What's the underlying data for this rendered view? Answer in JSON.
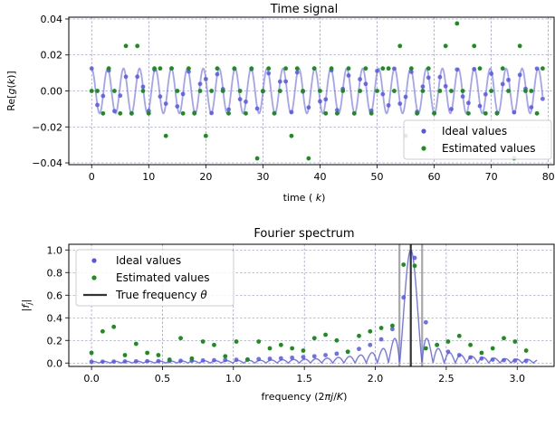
{
  "chart_data": [
    {
      "type": "scatter",
      "title": "Time signal",
      "xlabel": "time (k)",
      "ylabel": "Re[g(k)]",
      "xlim": [
        -4,
        81
      ],
      "ylim": [
        -0.041,
        0.041
      ],
      "xticks": [
        0,
        10,
        20,
        30,
        40,
        50,
        60,
        70,
        80
      ],
      "xtick_labels": [
        "0",
        "10",
        "20",
        "30",
        "40",
        "50",
        "60",
        "70",
        "80"
      ],
      "yticks": [
        -0.04,
        -0.02,
        0.0,
        0.02,
        0.04
      ],
      "ytick_labels": [
        "−0.04",
        "−0.02",
        "0.00",
        "0.02",
        "0.04"
      ],
      "grid": true,
      "legend_position": "bottom-right",
      "curve": {
        "amplitude": 0.0125,
        "omega": 2.25,
        "k_max": 79
      },
      "series": [
        {
          "name": "Ideal values",
          "color": "#5555ee",
          "x": [
            0,
            1,
            2,
            3,
            4,
            5,
            6,
            7,
            8,
            9,
            10,
            11,
            12,
            13,
            14,
            15,
            16,
            17,
            18,
            19,
            20,
            21,
            22,
            23,
            24,
            25,
            26,
            27,
            28,
            29,
            30,
            31,
            32,
            33,
            34,
            35,
            36,
            37,
            38,
            39,
            40,
            41,
            42,
            43,
            44,
            45,
            46,
            47,
            48,
            49,
            50,
            51,
            52,
            53,
            54,
            55,
            56,
            57,
            58,
            59,
            60,
            61,
            62,
            63,
            64,
            65,
            66,
            67,
            68,
            69,
            70,
            71,
            72,
            73,
            74,
            75,
            76,
            77,
            78,
            79
          ],
          "y": [
            0.0125,
            -0.0078,
            -0.0028,
            0.0113,
            -0.0112,
            -0.0026,
            0.0079,
            -0.0125,
            0.0079,
            0.0023,
            -0.0111,
            0.0118,
            -0.0031,
            -0.0071,
            0.0125,
            -0.0086,
            -0.0017,
            0.0107,
            -0.0121,
            0.0039,
            0.0066,
            -0.0123,
            0.0093,
            0.001,
            -0.0103,
            0.0123,
            -0.0046,
            -0.006,
            0.0121,
            -0.0098,
            -0.0003,
            0.0098,
            -0.0124,
            0.0052,
            0.0053,
            -0.0118,
            0.0103,
            -0.0004,
            -0.0092,
            0.0125,
            -0.0058,
            -0.0047,
            0.0115,
            -0.0107,
            0.0011,
            0.0086,
            -0.0125,
            0.0065,
            0.0039,
            -0.011,
            0.0111,
            -0.0018,
            -0.008,
            0.0124,
            -0.0071,
            -0.0033,
            0.0106,
            -0.0116,
            0.0024,
            0.0074,
            -0.0123,
            0.0077,
            0.0026,
            -0.0101,
            0.0119,
            -0.0031,
            -0.0067,
            0.0121,
            -0.0084,
            -0.0019,
            0.0096,
            -0.0122,
            0.0038,
            0.0061,
            -0.0119,
            0.0089,
            0.0012,
            -0.0091,
            0.0124,
            -0.0044
          ]
        },
        {
          "name": "Estimated values",
          "color": "#1a8f1a",
          "x": [
            0,
            1,
            2,
            3,
            4,
            5,
            6,
            7,
            8,
            9,
            10,
            11,
            12,
            13,
            14,
            15,
            16,
            17,
            18,
            19,
            20,
            21,
            22,
            23,
            24,
            25,
            26,
            27,
            28,
            29,
            30,
            31,
            32,
            33,
            34,
            35,
            36,
            37,
            38,
            39,
            40,
            41,
            42,
            43,
            44,
            45,
            46,
            47,
            48,
            49,
            50,
            51,
            52,
            53,
            54,
            55,
            56,
            57,
            58,
            59,
            60,
            61,
            62,
            63,
            64,
            65,
            66,
            67,
            68,
            69,
            70,
            71,
            72,
            73,
            74,
            75,
            76,
            77,
            78,
            79
          ],
          "y": [
            0,
            0,
            -0.0125,
            0.0125,
            0,
            -0.0125,
            0.025,
            -0.0125,
            0.025,
            0,
            -0.0125,
            0.0125,
            0.0125,
            -0.025,
            0.0125,
            0,
            -0.0125,
            0.0125,
            -0.0125,
            0,
            -0.025,
            0,
            0.0125,
            0,
            -0.0125,
            0.0125,
            0,
            -0.0125,
            0.0125,
            -0.0375,
            0,
            0.0125,
            -0.0125,
            0,
            0.0125,
            -0.025,
            0.0125,
            0,
            -0.0375,
            0.0125,
            0,
            -0.0125,
            0.0125,
            -0.0125,
            0,
            0.0125,
            -0.0125,
            0,
            0.0125,
            -0.0125,
            0,
            0.0125,
            0.0125,
            0,
            0.025,
            -0.025,
            0.0125,
            -0.0125,
            0,
            0.0125,
            -0.0125,
            0,
            0.025,
            0,
            0.0375,
            0,
            -0.0125,
            0.025,
            0.0125,
            -0.0125,
            0,
            -0.0125,
            0.0125,
            0,
            -0.0375,
            0.025,
            0,
            0,
            -0.0125,
            0.0125
          ]
        }
      ]
    },
    {
      "type": "scatter",
      "title": "Fourier spectrum",
      "xlabel": "frequency (2πj/K)",
      "ylabel": "|fj|",
      "xlim": [
        -0.16,
        3.26
      ],
      "ylim": [
        -0.03,
        1.05
      ],
      "xticks": [
        0.0,
        0.5,
        1.0,
        1.5,
        2.0,
        2.5,
        3.0
      ],
      "xtick_labels": [
        "0.0",
        "0.5",
        "1.0",
        "1.5",
        "2.0",
        "2.5",
        "3.0"
      ],
      "yticks": [
        0.0,
        0.2,
        0.4,
        0.6,
        0.8,
        1.0
      ],
      "ytick_labels": [
        "0.0",
        "0.2",
        "0.4",
        "0.6",
        "0.8",
        "1.0"
      ],
      "grid": true,
      "legend_position": "top-left",
      "true_frequency": 2.25,
      "true_frequency_label": "True frequency θ",
      "band": [
        2.17,
        2.33
      ],
      "curve": {
        "K": 80,
        "f_max": 3.14
      },
      "series": [
        {
          "name": "Ideal values",
          "color": "#5555ee",
          "x": [
            0.0,
            0.0785,
            0.157,
            0.2356,
            0.3142,
            0.3927,
            0.4712,
            0.5498,
            0.6283,
            0.7069,
            0.7854,
            0.8639,
            0.9425,
            1.021,
            1.0996,
            1.1781,
            1.2566,
            1.3352,
            1.4137,
            1.4923,
            1.5708,
            1.6493,
            1.7279,
            1.8064,
            1.885,
            1.9635,
            2.042,
            2.1206,
            2.1991,
            2.2777,
            2.3562,
            2.4347,
            2.5133,
            2.5918,
            2.6704,
            2.7489,
            2.8274,
            2.906,
            2.9845,
            3.0631
          ],
          "y": [
            0.011,
            0.012,
            0.013,
            0.014,
            0.015,
            0.016,
            0.017,
            0.018,
            0.02,
            0.021,
            0.023,
            0.025,
            0.027,
            0.029,
            0.032,
            0.035,
            0.038,
            0.042,
            0.047,
            0.053,
            0.06,
            0.07,
            0.083,
            0.1,
            0.125,
            0.16,
            0.21,
            0.3,
            0.58,
            0.93,
            0.36,
            0.16,
            0.1,
            0.07,
            0.05,
            0.04,
            0.03,
            0.025,
            0.022,
            0.02
          ]
        },
        {
          "name": "Estimated values",
          "color": "#1a8f1a",
          "x": [
            0.0,
            0.0785,
            0.157,
            0.2356,
            0.3142,
            0.3927,
            0.4712,
            0.5498,
            0.6283,
            0.7069,
            0.7854,
            0.8639,
            0.9425,
            1.021,
            1.0996,
            1.1781,
            1.2566,
            1.3352,
            1.4137,
            1.4923,
            1.5708,
            1.6493,
            1.7279,
            1.8064,
            1.885,
            1.9635,
            2.042,
            2.1206,
            2.1991,
            2.2777,
            2.3562,
            2.4347,
            2.5133,
            2.5918,
            2.6704,
            2.7489,
            2.8274,
            2.906,
            2.9845,
            3.0631
          ],
          "y": [
            0.09,
            0.28,
            0.32,
            0.07,
            0.17,
            0.09,
            0.07,
            0.03,
            0.22,
            0.04,
            0.19,
            0.16,
            0.06,
            0.19,
            0.03,
            0.19,
            0.13,
            0.16,
            0.13,
            0.11,
            0.22,
            0.25,
            0.2,
            0.1,
            0.24,
            0.28,
            0.31,
            0.33,
            0.87,
            0.86,
            0.13,
            0.16,
            0.19,
            0.24,
            0.16,
            0.09,
            0.13,
            0.22,
            0.19,
            0.11
          ]
        }
      ]
    }
  ]
}
